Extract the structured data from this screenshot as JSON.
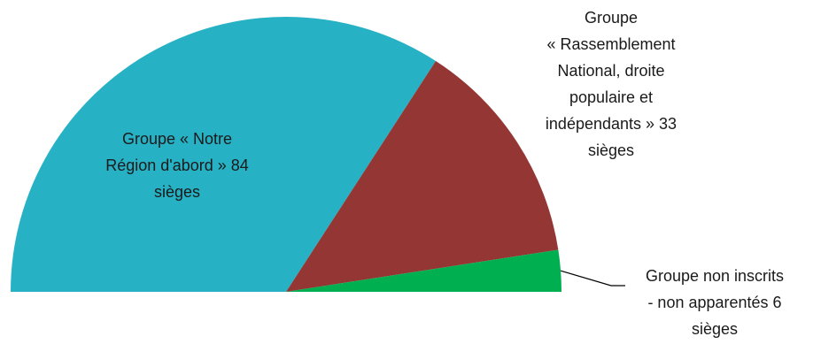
{
  "chart_data": {
    "type": "pie",
    "variant": "semicircle",
    "total": 123,
    "title": "",
    "legend": "none",
    "slices": [
      {
        "name": "Groupe « Notre Région d'abord »",
        "value": 84,
        "color": "#27B1C4",
        "label_lines": [
          "Groupe « Notre",
          "Région d'abord » 84",
          "sièges"
        ]
      },
      {
        "name": "Groupe « Rassemblement National, droite populaire et indépendants »",
        "value": 33,
        "color": "#943634",
        "label_lines": [
          "Groupe",
          "« Rassemblement",
          "National, droite",
          "populaire et",
          "indépendants »  33",
          "sièges"
        ]
      },
      {
        "name": "Groupe non inscrits - non apparentés",
        "value": 6,
        "color": "#00B050",
        "label_lines": [
          "Groupe non inscrits",
          "- non apparentés 6",
          "sièges"
        ]
      }
    ]
  }
}
